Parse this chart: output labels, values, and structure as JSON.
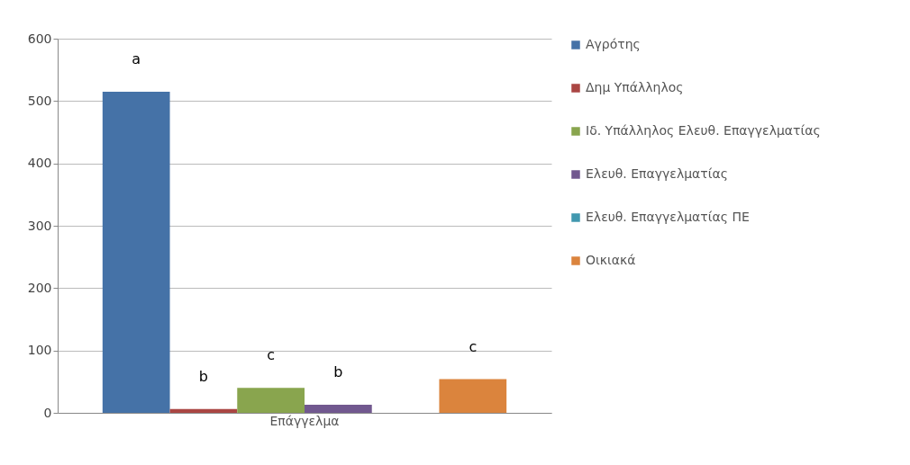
{
  "chart_data": {
    "type": "bar",
    "categories": [
      "Επάγγελμα"
    ],
    "series": [
      {
        "name": "Αγρότης",
        "color": "#4572a7",
        "values": [
          515
        ],
        "value_labels": [
          "a"
        ]
      },
      {
        "name": "Δημ Υπάλληλος",
        "color": "#aa4643",
        "values": [
          6
        ],
        "value_labels": [
          "b"
        ]
      },
      {
        "name": "Ιδ. Υπάλληλος Ελευθ. Επαγγελματίας",
        "color": "#89a54e",
        "values": [
          40
        ],
        "value_labels": [
          "c"
        ]
      },
      {
        "name": "Ελευθ. Επαγγελματίας",
        "color": "#71588f",
        "values": [
          13
        ],
        "value_labels": [
          "b"
        ]
      },
      {
        "name": "Ελευθ. Επαγγελματίας ΠΕ",
        "color": "#4198af",
        "values": [
          0
        ],
        "value_labels": [
          null
        ]
      },
      {
        "name": "Οικιακά",
        "color": "#db843d",
        "values": [
          54
        ],
        "value_labels": [
          "c"
        ]
      }
    ],
    "ylim": [
      0,
      600
    ],
    "yticks": [
      0,
      100,
      200,
      300,
      400,
      500,
      600
    ],
    "grid": "y",
    "legend": "right"
  }
}
